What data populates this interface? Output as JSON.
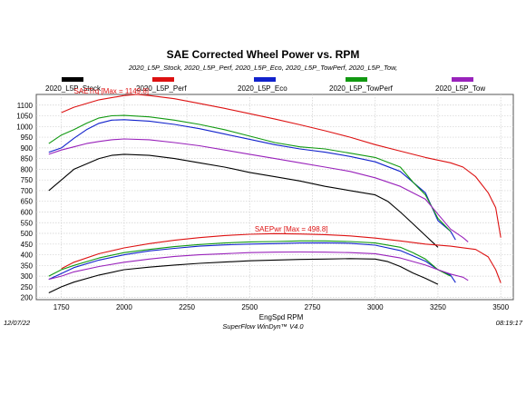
{
  "chart_data": {
    "type": "line",
    "title": "SAE Corrected Wheel Power vs. RPM",
    "subtitle": "2020_L5P_Stock, 2020_L5P_Perf, 2020_L5P_Eco, 2020_L5P_TowPerf, 2020_L5P_Tow,",
    "xlabel": "EngSpd RPM",
    "ylabel": "",
    "xlim": [
      1650,
      3550
    ],
    "ylim": [
      190,
      1150
    ],
    "x_ticks": [
      1750,
      2000,
      2250,
      2500,
      2750,
      3000,
      3250,
      3500
    ],
    "y_ticks": [
      200,
      250,
      300,
      350,
      400,
      450,
      500,
      550,
      600,
      650,
      700,
      750,
      800,
      850,
      900,
      950,
      1000,
      1050,
      1100
    ],
    "grid": true,
    "legend_position": "top",
    "legend": [
      {
        "name": "2020_L5P_Stock",
        "color": "#000000"
      },
      {
        "name": "2020_L5P_Perf",
        "color": "#dd1111"
      },
      {
        "name": "2020_L5P_Eco",
        "color": "#1122cc"
      },
      {
        "name": "2020_L5P_TowPerf",
        "color": "#119911"
      },
      {
        "name": "2020_L5P_Tow",
        "color": "#9922bb"
      }
    ],
    "annotations": [
      {
        "text": "SAETrq [Max = 1149.8]",
        "x": 1800,
        "y": 1155,
        "color": "#dd1111"
      },
      {
        "text": "SAEPwr [Max = 498.8]",
        "x": 2520,
        "y": 508,
        "color": "#dd1111"
      }
    ],
    "series": [
      {
        "name": "2020_L5P_Stock",
        "measure": "torque",
        "color": "#000000",
        "x": [
          1700,
          1760,
          1800,
          1850,
          1900,
          1950,
          2000,
          2100,
          2200,
          2300,
          2400,
          2500,
          2600,
          2700,
          2800,
          2900,
          3000,
          3050,
          3100,
          3150,
          3200,
          3250
        ],
        "y": [
          700,
          760,
          800,
          825,
          850,
          865,
          870,
          865,
          850,
          830,
          810,
          785,
          765,
          745,
          720,
          700,
          680,
          650,
          600,
          545,
          490,
          435
        ]
      },
      {
        "name": "2020_L5P_Stock",
        "measure": "power",
        "color": "#000000",
        "x": [
          1700,
          1750,
          1800,
          1900,
          2000,
          2100,
          2200,
          2300,
          2400,
          2500,
          2600,
          2700,
          2800,
          2900,
          3000,
          3050,
          3100,
          3150,
          3200,
          3250
        ],
        "y": [
          222,
          250,
          272,
          305,
          330,
          342,
          352,
          360,
          366,
          372,
          375,
          378,
          380,
          382,
          380,
          368,
          345,
          315,
          290,
          262
        ]
      },
      {
        "name": "2020_L5P_Perf",
        "measure": "torque",
        "color": "#dd1111",
        "x": [
          1750,
          1800,
          1900,
          2000,
          2050,
          2100,
          2200,
          2300,
          2400,
          2500,
          2600,
          2700,
          2800,
          2900,
          3000,
          3100,
          3200,
          3300,
          3350,
          3400,
          3450,
          3480,
          3500
        ],
        "y": [
          1065,
          1090,
          1125,
          1145,
          1149.8,
          1145,
          1130,
          1108,
          1085,
          1060,
          1035,
          1008,
          980,
          950,
          915,
          885,
          855,
          830,
          810,
          765,
          690,
          620,
          480
        ]
      },
      {
        "name": "2020_L5P_Perf",
        "measure": "power",
        "color": "#dd1111",
        "x": [
          1750,
          1800,
          1900,
          2000,
          2100,
          2200,
          2300,
          2400,
          2500,
          2600,
          2700,
          2800,
          2900,
          3000,
          3100,
          3200,
          3300,
          3400,
          3450,
          3480,
          3500
        ],
        "y": [
          335,
          365,
          405,
          432,
          452,
          468,
          480,
          490,
          496,
          498.8,
          497,
          494,
          488,
          478,
          465,
          450,
          440,
          425,
          390,
          330,
          268
        ]
      },
      {
        "name": "2020_L5P_Eco",
        "measure": "torque",
        "color": "#1122cc",
        "x": [
          1700,
          1750,
          1800,
          1850,
          1900,
          1950,
          2000,
          2100,
          2200,
          2300,
          2400,
          2500,
          2600,
          2700,
          2800,
          2900,
          3000,
          3100,
          3200,
          3250,
          3300,
          3320
        ],
        "y": [
          880,
          900,
          945,
          985,
          1015,
          1030,
          1032,
          1025,
          1010,
          990,
          965,
          940,
          915,
          895,
          880,
          860,
          835,
          790,
          690,
          560,
          510,
          470
        ]
      },
      {
        "name": "2020_L5P_Eco",
        "measure": "power",
        "color": "#1122cc",
        "x": [
          1700,
          1750,
          1800,
          1900,
          2000,
          2100,
          2200,
          2300,
          2400,
          2500,
          2600,
          2700,
          2800,
          2900,
          3000,
          3100,
          3200,
          3250,
          3300,
          3320
        ],
        "y": [
          285,
          312,
          340,
          375,
          400,
          418,
          430,
          440,
          446,
          450,
          452,
          455,
          456,
          454,
          445,
          420,
          370,
          330,
          305,
          270
        ]
      },
      {
        "name": "2020_L5P_TowPerf",
        "measure": "torque",
        "color": "#119911",
        "x": [
          1700,
          1750,
          1800,
          1850,
          1900,
          1950,
          2000,
          2100,
          2200,
          2300,
          2400,
          2500,
          2600,
          2700,
          2800,
          2900,
          3000,
          3100,
          3150,
          3200,
          3250,
          3300
        ],
        "y": [
          920,
          960,
          985,
          1015,
          1040,
          1050,
          1052,
          1045,
          1030,
          1010,
          985,
          955,
          925,
          905,
          895,
          875,
          855,
          810,
          740,
          680,
          570,
          510
        ]
      },
      {
        "name": "2020_L5P_TowPerf",
        "measure": "power",
        "color": "#119911",
        "x": [
          1700,
          1750,
          1800,
          1900,
          2000,
          2100,
          2200,
          2300,
          2400,
          2500,
          2600,
          2700,
          2800,
          2900,
          3000,
          3100,
          3150,
          3200,
          3250,
          3300
        ],
        "y": [
          300,
          330,
          350,
          385,
          410,
          425,
          438,
          448,
          455,
          460,
          462,
          465,
          465,
          462,
          455,
          435,
          410,
          380,
          330,
          300
        ]
      },
      {
        "name": "2020_L5P_Tow",
        "measure": "torque",
        "color": "#9922bb",
        "x": [
          1700,
          1750,
          1800,
          1850,
          1900,
          1950,
          2000,
          2100,
          2200,
          2300,
          2400,
          2500,
          2600,
          2700,
          2800,
          2900,
          3000,
          3100,
          3200,
          3250,
          3300,
          3350,
          3370
        ],
        "y": [
          870,
          890,
          905,
          920,
          930,
          938,
          942,
          938,
          925,
          910,
          890,
          870,
          850,
          830,
          810,
          790,
          760,
          720,
          660,
          590,
          520,
          480,
          460
        ]
      },
      {
        "name": "2020_L5P_Tow",
        "measure": "power",
        "color": "#9922bb",
        "x": [
          1700,
          1750,
          1800,
          1900,
          2000,
          2100,
          2200,
          2300,
          2400,
          2500,
          2600,
          2700,
          2800,
          2900,
          3000,
          3100,
          3200,
          3250,
          3300,
          3350,
          3370
        ],
        "y": [
          285,
          300,
          320,
          345,
          365,
          380,
          392,
          400,
          405,
          410,
          412,
          413,
          412,
          410,
          405,
          385,
          352,
          330,
          310,
          295,
          280
        ]
      }
    ]
  },
  "footer": {
    "date": "12/07/22",
    "software": "SuperFlow WinDyn™ V4.0",
    "time": "08:19:17"
  }
}
